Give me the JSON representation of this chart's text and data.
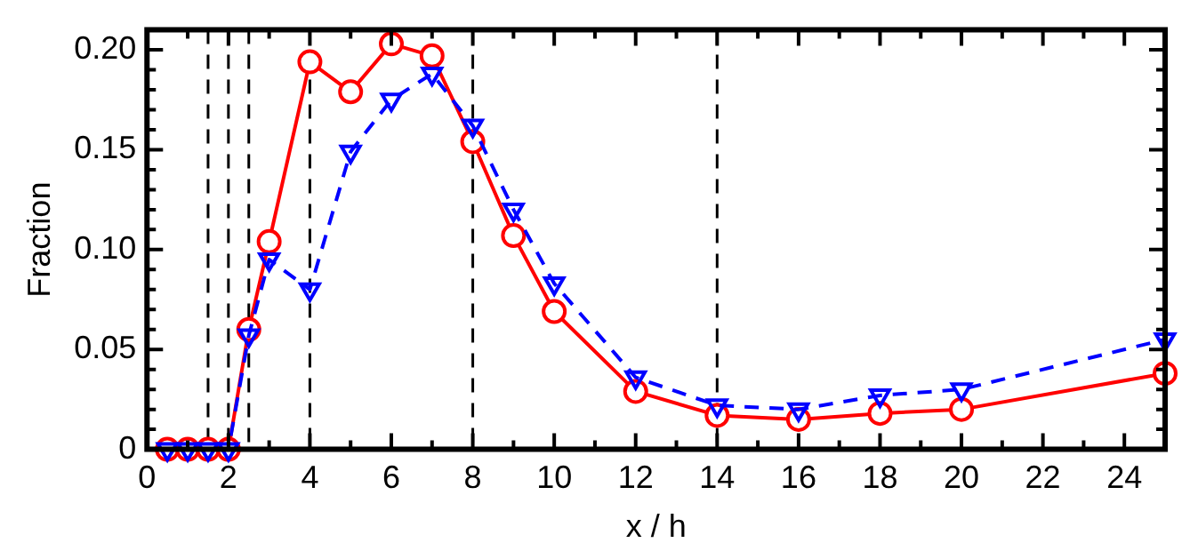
{
  "chart_data": {
    "type": "line",
    "xlabel": "x / h",
    "ylabel": "Fraction",
    "xlim": [
      0,
      25
    ],
    "xticks": [
      0,
      {
        "value": 1,
        "label": null
      },
      2,
      {
        "value": 3,
        "label": null
      },
      4,
      {
        "value": 5,
        "label": null
      },
      6,
      {
        "value": 7,
        "label": null
      },
      8,
      {
        "value": 9,
        "label": null
      },
      10,
      {
        "value": 11,
        "label": null
      },
      12,
      {
        "value": 13,
        "label": null
      },
      14,
      {
        "value": 15,
        "label": null
      },
      16,
      {
        "value": 17,
        "label": null
      },
      18,
      {
        "value": 19,
        "label": null
      },
      20,
      {
        "value": 21,
        "label": null
      },
      22,
      {
        "value": 23,
        "label": null
      },
      24
    ],
    "ylim": [
      0,
      0.21
    ],
    "yticks": [
      0,
      {
        "value": 0.01,
        "label": null
      },
      {
        "value": 0.02,
        "label": null
      },
      {
        "value": 0.03,
        "label": null
      },
      {
        "value": 0.04,
        "label": null
      },
      0.05,
      {
        "value": 0.06,
        "label": null
      },
      {
        "value": 0.07,
        "label": null
      },
      {
        "value": 0.08,
        "label": null
      },
      {
        "value": 0.09,
        "label": null
      },
      {
        "value": 0.1,
        "label": "0.10"
      },
      {
        "value": 0.11,
        "label": null
      },
      {
        "value": 0.12,
        "label": null
      },
      {
        "value": 0.13,
        "label": null
      },
      {
        "value": 0.14,
        "label": null
      },
      0.15,
      {
        "value": 0.16,
        "label": null
      },
      {
        "value": 0.17,
        "label": null
      },
      {
        "value": 0.18,
        "label": null
      },
      {
        "value": 0.19,
        "label": null
      },
      {
        "value": 0.2,
        "label": "0.20"
      }
    ],
    "grid": false,
    "legend": false,
    "x": [
      0.5,
      1,
      1.5,
      2,
      2.5,
      3,
      4,
      5,
      6,
      7,
      8,
      9,
      10,
      12,
      14,
      16,
      18,
      20,
      25
    ],
    "series": [
      {
        "color": "#ff0000",
        "marker": "circle",
        "line_style": "solid",
        "values": [
          0,
          0,
          0,
          0,
          0.06,
          0.104,
          0.194,
          0.179,
          0.203,
          0.197,
          0.154,
          0.107,
          0.069,
          0.029,
          0.017,
          0.015,
          0.018,
          0.02,
          0.038
        ]
      },
      {
        "color": "#0000ff",
        "marker": "triangle",
        "line_style": "dashed",
        "values": [
          0,
          0,
          0,
          0,
          0.057,
          0.095,
          0.08,
          0.149,
          0.175,
          0.188,
          0.162,
          0.12,
          0.083,
          0.036,
          0.022,
          0.02,
          0.027,
          0.03,
          0.055
        ]
      }
    ],
    "ref_lines": [
      {
        "axis": "x",
        "value": 1.5,
        "color": "#000000",
        "line_style": "dashed"
      },
      {
        "axis": "x",
        "value": 2,
        "color": "#000000",
        "line_style": "dashed"
      },
      {
        "axis": "x",
        "value": 2.5,
        "color": "#000000",
        "line_style": "dashed"
      },
      {
        "axis": "x",
        "value": 4,
        "color": "#000000",
        "line_style": "dashed"
      },
      {
        "axis": "x",
        "value": 8,
        "color": "#000000",
        "line_style": "dashed"
      },
      {
        "axis": "x",
        "value": 14,
        "color": "#000000",
        "line_style": "dashed"
      }
    ]
  }
}
